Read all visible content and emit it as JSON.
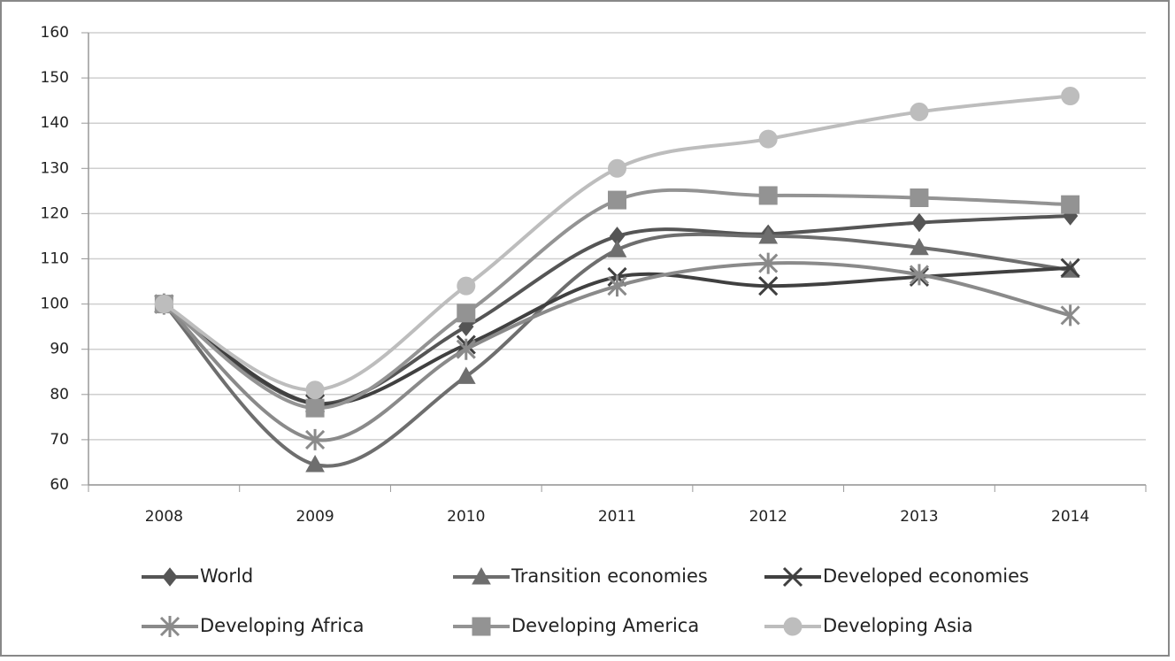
{
  "chart_data": {
    "type": "line",
    "categories": [
      "2008",
      "2009",
      "2010",
      "2011",
      "2012",
      "2013",
      "2014"
    ],
    "ylim": [
      60,
      160
    ],
    "yticks": [
      60,
      70,
      80,
      90,
      100,
      110,
      120,
      130,
      140,
      150,
      160
    ],
    "grid": true,
    "series": [
      {
        "name": "World",
        "color": "#555555",
        "marker": "diamond",
        "values": [
          100,
          78,
          95,
          115,
          115.5,
          118,
          119.5
        ]
      },
      {
        "name": "Transition economies",
        "color": "#6e6e6e",
        "marker": "triangle",
        "values": [
          100,
          64.5,
          84,
          112,
          115,
          112.5,
          107.5
        ]
      },
      {
        "name": "Developed economies",
        "color": "#404040",
        "marker": "x",
        "values": [
          100,
          78,
          91,
          106,
          104,
          106,
          108
        ]
      },
      {
        "name": "Developing Africa",
        "color": "#8a8a8a",
        "marker": "star",
        "values": [
          100,
          70,
          90,
          104,
          109,
          106.5,
          97.5
        ]
      },
      {
        "name": "Developing America",
        "color": "#939393",
        "marker": "square",
        "values": [
          100,
          77,
          98,
          123,
          124,
          123.5,
          122
        ]
      },
      {
        "name": "Developing Asia",
        "color": "#bdbdbd",
        "marker": "circle",
        "values": [
          100,
          81,
          104,
          130,
          136.5,
          142.5,
          146
        ]
      }
    ]
  }
}
